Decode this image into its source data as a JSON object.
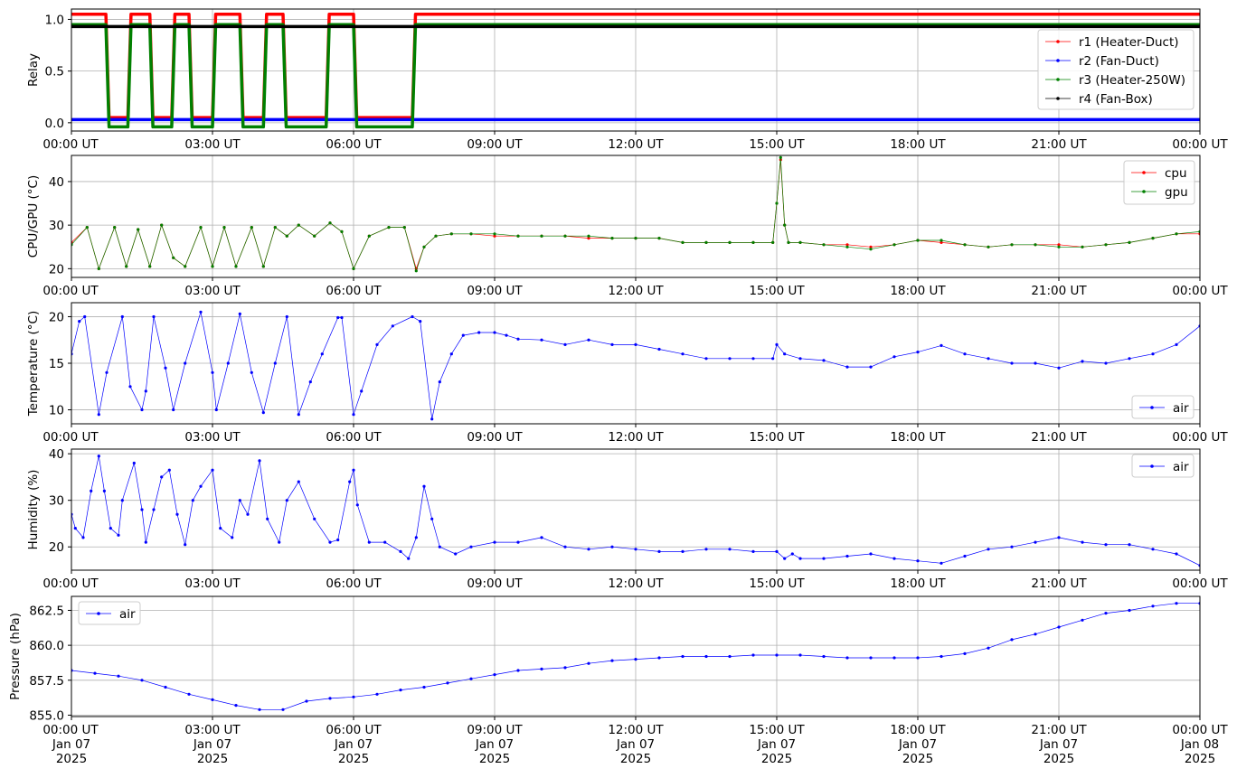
{
  "x_tick_labels": [
    "00:00 UT",
    "03:00 UT",
    "06:00 UT",
    "09:00 UT",
    "12:00 UT",
    "15:00 UT",
    "18:00 UT",
    "21:00 UT",
    "00:00 UT"
  ],
  "x_tick_dates": [
    "Jan 07",
    "Jan 07",
    "Jan 07",
    "Jan 07",
    "Jan 07",
    "Jan 07",
    "Jan 07",
    "Jan 07",
    "Jan 08"
  ],
  "x_tick_years": [
    "2025",
    "2025",
    "2025",
    "2025",
    "2025",
    "2025",
    "2025",
    "2025",
    "2025"
  ],
  "colors": {
    "red": "#ff0000",
    "blue": "#0000ff",
    "green": "#008000",
    "black": "#000000"
  },
  "chart_data": [
    {
      "type": "line",
      "ylabel": "Relay",
      "xlim": [
        "2025-01-07 00:00",
        "2025-01-08 00:00"
      ],
      "ylim": [
        -0.08,
        1.1
      ],
      "yticks": [
        "0.0",
        "0.5",
        "1.0"
      ],
      "grid": true,
      "legend_position": "right",
      "series": [
        {
          "name": "r1 (Heater-Duct)",
          "color": "red",
          "x": [
            "00:00",
            "00:44",
            "00:48",
            "01:12",
            "01:16",
            "01:40",
            "01:44",
            "02:08",
            "02:12",
            "02:30",
            "02:34",
            "03:00",
            "03:04",
            "03:35",
            "03:39",
            "04:05",
            "04:09",
            "04:30",
            "04:34",
            "05:25",
            "05:29",
            "06:00",
            "06:04",
            "07:15",
            "07:19",
            "24:00"
          ],
          "values": [
            1.05,
            1.05,
            0.05,
            0.05,
            1.05,
            1.05,
            0.05,
            0.05,
            1.05,
            1.05,
            0.05,
            0.05,
            1.05,
            1.05,
            0.05,
            0.05,
            1.05,
            1.05,
            0.05,
            0.05,
            1.05,
            1.05,
            0.05,
            0.05,
            1.05,
            1.05
          ]
        },
        {
          "name": "r2 (Fan-Duct)",
          "color": "blue",
          "x": [
            "00:00",
            "24:00"
          ],
          "values": [
            0.03,
            0.03
          ]
        },
        {
          "name": "r3 (Heater-250W)",
          "color": "green",
          "x": [
            "00:00",
            "00:44",
            "00:48",
            "01:12",
            "01:16",
            "01:40",
            "01:44",
            "02:08",
            "02:12",
            "02:30",
            "02:34",
            "03:00",
            "03:04",
            "03:35",
            "03:39",
            "04:05",
            "04:09",
            "04:30",
            "04:34",
            "05:25",
            "05:29",
            "06:00",
            "06:04",
            "07:15",
            "07:19",
            "24:00"
          ],
          "values": [
            0.95,
            0.95,
            -0.04,
            -0.04,
            0.95,
            0.95,
            -0.04,
            -0.04,
            0.95,
            0.95,
            -0.04,
            -0.04,
            0.95,
            0.95,
            -0.04,
            -0.04,
            0.95,
            0.95,
            -0.04,
            -0.04,
            0.95,
            0.95,
            -0.04,
            -0.04,
            0.95,
            0.95
          ]
        },
        {
          "name": "r4 (Fan-Box)",
          "color": "black",
          "x": [
            "00:00",
            "24:00"
          ],
          "values": [
            0.93,
            0.93
          ]
        }
      ]
    },
    {
      "type": "line",
      "ylabel": "CPU/GPU (°C)",
      "xlim": [
        "2025-01-07 00:00",
        "2025-01-08 00:00"
      ],
      "ylim": [
        18,
        46
      ],
      "yticks": [
        "20",
        "30",
        "40"
      ],
      "grid": true,
      "legend_position": "top-right",
      "series": [
        {
          "name": "cpu",
          "color": "red",
          "x": [
            "00:00",
            "00:20",
            "00:35",
            "00:55",
            "01:10",
            "01:25",
            "01:40",
            "01:55",
            "02:10",
            "02:25",
            "02:45",
            "03:00",
            "03:15",
            "03:30",
            "03:50",
            "04:05",
            "04:20",
            "04:35",
            "04:50",
            "05:10",
            "05:30",
            "05:45",
            "06:00",
            "06:20",
            "06:45",
            "07:05",
            "07:20",
            "07:30",
            "07:45",
            "08:05",
            "08:30",
            "09:00",
            "09:30",
            "10:00",
            "10:30",
            "11:00",
            "11:30",
            "12:00",
            "12:30",
            "13:00",
            "13:30",
            "14:00",
            "14:30",
            "14:55",
            "15:00",
            "15:05",
            "15:10",
            "15:15",
            "15:30",
            "16:00",
            "16:30",
            "17:00",
            "17:30",
            "18:00",
            "18:30",
            "19:00",
            "19:30",
            "20:00",
            "20:30",
            "21:00",
            "21:30",
            "22:00",
            "22:30",
            "23:00",
            "23:30",
            "24:00"
          ],
          "values": [
            26,
            29.5,
            20,
            29.5,
            20.5,
            29,
            20.5,
            30,
            22.5,
            20.5,
            29.5,
            20.5,
            29.5,
            20.5,
            29.5,
            20.5,
            29.5,
            27.5,
            30,
            27.5,
            30.5,
            28.5,
            20,
            27.5,
            29.5,
            29.5,
            20,
            25,
            27.5,
            28,
            28,
            27.5,
            27.5,
            27.5,
            27.5,
            27,
            27,
            27,
            27,
            26,
            26,
            26,
            26,
            26,
            35,
            45,
            30,
            26,
            26,
            25.5,
            25.5,
            25,
            25.5,
            26.5,
            26,
            25.5,
            25,
            25.5,
            25.5,
            25.5,
            25,
            25.5,
            26,
            27,
            28,
            28
          ]
        },
        {
          "name": "gpu",
          "color": "green",
          "x": [
            "00:00",
            "00:20",
            "00:35",
            "00:55",
            "01:10",
            "01:25",
            "01:40",
            "01:55",
            "02:10",
            "02:25",
            "02:45",
            "03:00",
            "03:15",
            "03:30",
            "03:50",
            "04:05",
            "04:20",
            "04:35",
            "04:50",
            "05:10",
            "05:30",
            "05:45",
            "06:00",
            "06:20",
            "06:45",
            "07:05",
            "07:20",
            "07:30",
            "07:45",
            "08:05",
            "08:30",
            "09:00",
            "09:30",
            "10:00",
            "10:30",
            "11:00",
            "11:30",
            "12:00",
            "12:30",
            "13:00",
            "13:30",
            "14:00",
            "14:30",
            "14:55",
            "15:00",
            "15:05",
            "15:10",
            "15:15",
            "15:30",
            "16:00",
            "16:30",
            "17:00",
            "17:30",
            "18:00",
            "18:30",
            "19:00",
            "19:30",
            "20:00",
            "20:30",
            "21:00",
            "21:30",
            "22:00",
            "22:30",
            "23:00",
            "23:30",
            "24:00"
          ],
          "values": [
            25.5,
            29.5,
            20,
            29.5,
            20.5,
            29,
            20.5,
            30,
            22.5,
            20.5,
            29.5,
            20.5,
            29.5,
            20.5,
            29.5,
            20.5,
            29.5,
            27.5,
            30,
            27.5,
            30.5,
            28.5,
            20,
            27.5,
            29.5,
            29.5,
            19.5,
            25,
            27.5,
            28,
            28,
            28,
            27.5,
            27.5,
            27.5,
            27.5,
            27,
            27,
            27,
            26,
            26,
            26,
            26,
            26,
            35,
            45.5,
            30,
            26,
            26,
            25.5,
            25,
            24.5,
            25.5,
            26.5,
            26.5,
            25.5,
            25,
            25.5,
            25.5,
            25,
            25,
            25.5,
            26,
            27,
            28,
            28.5
          ]
        }
      ]
    },
    {
      "type": "line",
      "ylabel": "Temperature (°C)",
      "xlim": [
        "2025-01-07 00:00",
        "2025-01-08 00:00"
      ],
      "ylim": [
        8.5,
        21.5
      ],
      "yticks": [
        "10",
        "15",
        "20"
      ],
      "grid": true,
      "legend_position": "bottom-right",
      "series": [
        {
          "name": "air",
          "color": "blue",
          "x": [
            "00:00",
            "00:10",
            "00:17",
            "00:35",
            "00:45",
            "01:05",
            "01:15",
            "01:30",
            "01:35",
            "01:45",
            "02:00",
            "02:10",
            "02:25",
            "02:45",
            "03:00",
            "03:05",
            "03:20",
            "03:35",
            "03:50",
            "04:05",
            "04:20",
            "04:35",
            "04:50",
            "05:05",
            "05:20",
            "05:40",
            "05:45",
            "06:00",
            "06:10",
            "06:30",
            "06:50",
            "07:15",
            "07:25",
            "07:40",
            "07:50",
            "08:05",
            "08:20",
            "08:40",
            "09:00",
            "09:15",
            "09:30",
            "10:00",
            "10:30",
            "11:00",
            "11:30",
            "12:00",
            "12:30",
            "13:00",
            "13:30",
            "14:00",
            "14:30",
            "14:55",
            "15:00",
            "15:10",
            "15:30",
            "16:00",
            "16:30",
            "17:00",
            "17:30",
            "18:00",
            "18:30",
            "19:00",
            "19:30",
            "20:00",
            "20:30",
            "21:00",
            "21:30",
            "22:00",
            "22:30",
            "23:00",
            "23:30",
            "24:00"
          ],
          "values": [
            16,
            19.5,
            20,
            9.5,
            14,
            20,
            12.5,
            10,
            12,
            20,
            14.5,
            10,
            15,
            20.5,
            14,
            10,
            15,
            20.3,
            14,
            9.7,
            15,
            20,
            9.5,
            13,
            16,
            19.9,
            19.9,
            9.5,
            12,
            17,
            19,
            20,
            19.5,
            9,
            13,
            16,
            18,
            18.3,
            18.3,
            18,
            17.6,
            17.5,
            17,
            17.5,
            17,
            17,
            16.5,
            16,
            15.5,
            15.5,
            15.5,
            15.5,
            17,
            16,
            15.5,
            15.3,
            14.6,
            14.6,
            15.7,
            16.2,
            16.9,
            16,
            15.5,
            15,
            15,
            14.5,
            15.2,
            15,
            15.5,
            16,
            17,
            19
          ]
        }
      ]
    },
    {
      "type": "line",
      "ylabel": "Humidity (%)",
      "xlim": [
        "2025-01-07 00:00",
        "2025-01-08 00:00"
      ],
      "ylim": [
        15,
        41
      ],
      "yticks": [
        "20",
        "30",
        "40"
      ],
      "grid": true,
      "legend_position": "top-right",
      "series": [
        {
          "name": "air",
          "color": "blue",
          "x": [
            "00:00",
            "00:05",
            "00:15",
            "00:25",
            "00:35",
            "00:42",
            "00:50",
            "01:00",
            "01:05",
            "01:20",
            "01:30",
            "01:35",
            "01:45",
            "01:55",
            "02:05",
            "02:15",
            "02:25",
            "02:35",
            "02:45",
            "03:00",
            "03:10",
            "03:25",
            "03:35",
            "03:45",
            "04:00",
            "04:10",
            "04:25",
            "04:35",
            "04:50",
            "05:10",
            "05:30",
            "05:40",
            "05:55",
            "06:00",
            "06:05",
            "06:20",
            "06:40",
            "07:00",
            "07:10",
            "07:20",
            "07:30",
            "07:40",
            "07:50",
            "08:10",
            "08:30",
            "09:00",
            "09:30",
            "10:00",
            "10:30",
            "11:00",
            "11:30",
            "12:00",
            "12:30",
            "13:00",
            "13:30",
            "14:00",
            "14:30",
            "15:00",
            "15:10",
            "15:20",
            "15:30",
            "16:00",
            "16:30",
            "17:00",
            "17:30",
            "18:00",
            "18:30",
            "19:00",
            "19:30",
            "20:00",
            "20:30",
            "21:00",
            "21:30",
            "22:00",
            "22:30",
            "23:00",
            "23:30",
            "24:00"
          ],
          "values": [
            27,
            24,
            22,
            32,
            39.5,
            32,
            24,
            22.5,
            30,
            38,
            28,
            21,
            28,
            35,
            36.5,
            27,
            20.5,
            30,
            33,
            36.5,
            24,
            22,
            30,
            27,
            38.5,
            26,
            21,
            30,
            34,
            26,
            21,
            21.5,
            34,
            36.5,
            29,
            21,
            21,
            19,
            17.5,
            22,
            33,
            26,
            20,
            18.5,
            20,
            21,
            21,
            22,
            20,
            19.5,
            20,
            19.5,
            19,
            19,
            19.5,
            19.5,
            19,
            19,
            17.5,
            18.5,
            17.5,
            17.5,
            18,
            18.5,
            17.5,
            17,
            16.5,
            18,
            19.5,
            20,
            21,
            22,
            21,
            20.5,
            20.5,
            19.5,
            18.5,
            16
          ]
        }
      ]
    },
    {
      "type": "line",
      "ylabel": "Pressure (hPa)",
      "xlim": [
        "2025-01-07 00:00",
        "2025-01-08 00:00"
      ],
      "ylim": [
        854.9,
        863.5
      ],
      "yticks": [
        "855.0",
        "857.5",
        "860.0",
        "862.5"
      ],
      "grid": true,
      "legend_position": "top-left",
      "series": [
        {
          "name": "air",
          "color": "blue",
          "x": [
            "00:00",
            "00:30",
            "01:00",
            "01:30",
            "02:00",
            "02:30",
            "03:00",
            "03:30",
            "04:00",
            "04:30",
            "05:00",
            "05:30",
            "06:00",
            "06:30",
            "07:00",
            "07:30",
            "08:00",
            "08:30",
            "09:00",
            "09:30",
            "10:00",
            "10:30",
            "11:00",
            "11:30",
            "12:00",
            "12:30",
            "13:00",
            "13:30",
            "14:00",
            "14:30",
            "15:00",
            "15:30",
            "16:00",
            "16:30",
            "17:00",
            "17:30",
            "18:00",
            "18:30",
            "19:00",
            "19:30",
            "20:00",
            "20:30",
            "21:00",
            "21:30",
            "22:00",
            "22:30",
            "23:00",
            "23:30",
            "24:00"
          ],
          "values": [
            858.2,
            858,
            857.8,
            857.5,
            857,
            856.5,
            856.1,
            855.7,
            855.4,
            855.4,
            856,
            856.2,
            856.3,
            856.5,
            856.8,
            857,
            857.3,
            857.6,
            857.9,
            858.2,
            858.3,
            858.4,
            858.7,
            858.9,
            859,
            859.1,
            859.2,
            859.2,
            859.2,
            859.3,
            859.3,
            859.3,
            859.2,
            859.1,
            859.1,
            859.1,
            859.1,
            859.2,
            859.4,
            859.8,
            860.4,
            860.8,
            861.3,
            861.8,
            862.3,
            862.5,
            862.8,
            863,
            863
          ]
        }
      ]
    }
  ]
}
